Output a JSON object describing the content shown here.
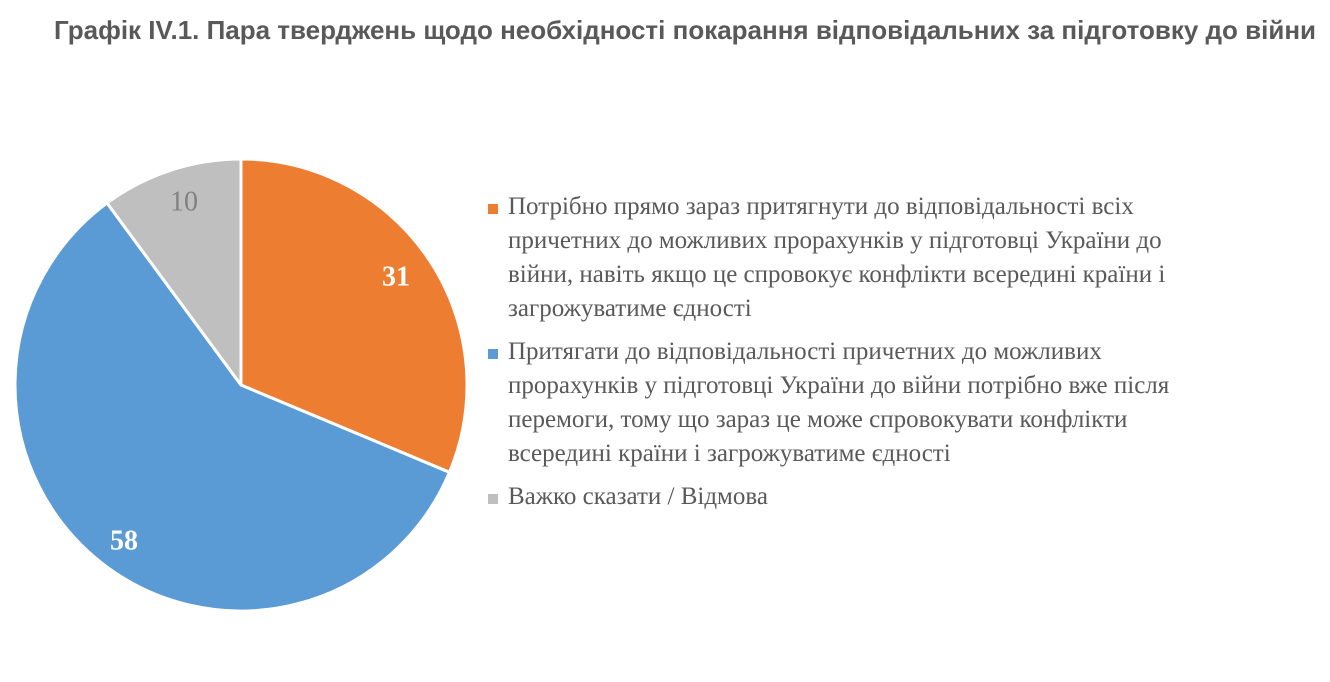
{
  "title": "Графік IV.1. Пара тверджень щодо необхідності покарання відповідальних за підготовку до війни",
  "chart_data": {
    "type": "pie",
    "slices": [
      {
        "label": "Потрібно прямо зараз притягнути до відповідальності всіх причетних до можливих прорахунків у підготовці України до війни, навіть якщо це спровокує конфлікти всередині країни і загрожуватиме єдності",
        "value": 31,
        "color": "#ED7D31",
        "label_color": "#FFFFFF"
      },
      {
        "label": "Притягати до відповідальності причетних до можливих прорахунків у підготовці України до війни потрібно вже після перемоги, тому що зараз це може спровокувати конфлікти всередині країни і загрожуватиме єдності",
        "value": 58,
        "color": "#5B9BD5",
        "label_color": "#FFFFFF"
      },
      {
        "label": "Важко сказати / Відмова",
        "value": 10,
        "color": "#BFBFBF",
        "label_color": "#808080"
      }
    ],
    "start_angle": "12 o'clock",
    "direction": "clockwise",
    "legend_position": "right"
  }
}
